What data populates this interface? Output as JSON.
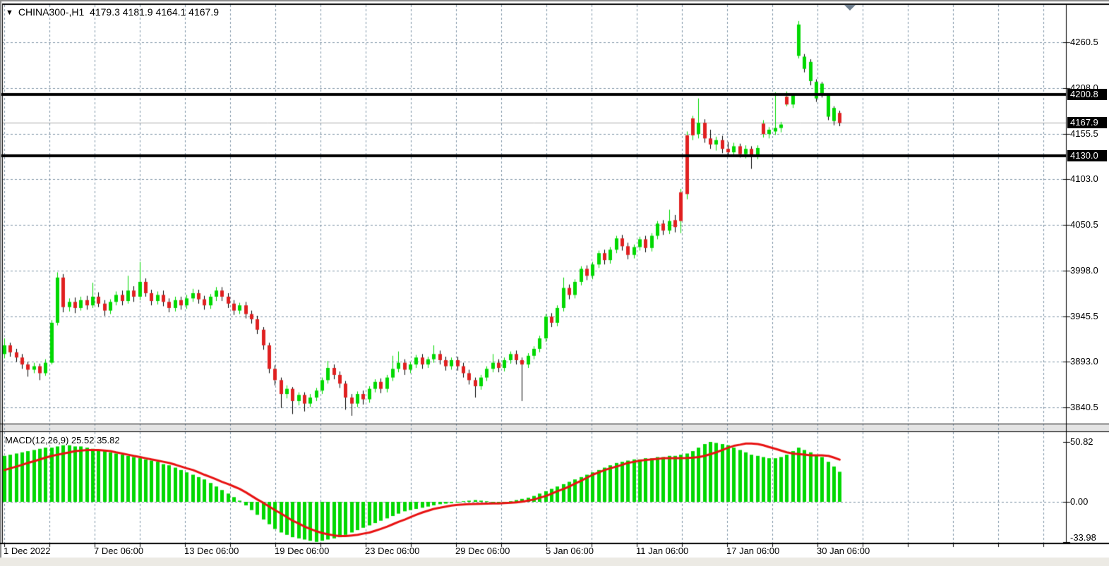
{
  "window": {
    "title_symbol": "CHINA300-,H1",
    "title_ohlc": "4179.3 4181.9 4164.1 4167.9"
  },
  "colors": {
    "bull": "#00d800",
    "bear": "#e02020",
    "wick_down": "#000000",
    "grid": "#7e93a6",
    "signal_line": "#e81212",
    "hline": "#000000",
    "current_price_line": "#a8a8a8",
    "badge_bg": "#000000",
    "badge_fg": "#ffffff",
    "frame": "#000000",
    "outer_frame": "#8a8a8a",
    "separator_band": "#e4e4e4",
    "bottom_strip": "#eceae4"
  },
  "price_axis": {
    "tick_labels": [
      "4260.5",
      "4208.0",
      "4155.5",
      "4103.0",
      "4050.5",
      "3998.0",
      "3945.5",
      "3893.0",
      "3840.5"
    ],
    "badges": [
      {
        "text": "4200.8",
        "price": 4200.8,
        "kind": "hline-level"
      },
      {
        "text": "4167.9",
        "price": 4167.9,
        "kind": "current-price"
      },
      {
        "text": "4130.0",
        "price": 4130.0,
        "kind": "hline-level"
      }
    ]
  },
  "macd_pane": {
    "label": "MACD(12,26,9) 25.52 35.82",
    "axis_labels": [
      "50.82",
      "0.00",
      "-33.98"
    ],
    "axis_values": [
      50.82,
      0,
      -33.98
    ]
  },
  "chart_data": {
    "type": "candlestick",
    "title": "CHINA300-,H1",
    "symbol": "CHINA300-",
    "timeframe": "H1",
    "current_bar": {
      "open": 4179.3,
      "high": 4181.9,
      "low": 4164.1,
      "close": 4167.9
    },
    "ylim": [
      3822.0,
      4303.5
    ],
    "price_ticks": [
      4260.5,
      4208.0,
      4155.5,
      4103.0,
      4050.5,
      3998.0,
      3945.5,
      3893.0,
      3840.5
    ],
    "hlines": [
      4200.8,
      4130.0
    ],
    "current_price": 4167.9,
    "time_labels": [
      "1 Dec 2022",
      "7 Dec 06:00",
      "13 Dec 06:00",
      "19 Dec 06:00",
      "23 Dec 06:00",
      "29 Dec 06:00",
      "5 Jan 06:00",
      "11 Jan 06:00",
      "17 Jan 06:00",
      "30 Jan 06:00"
    ],
    "grid": {
      "vertical_spacing_bars": 8,
      "dashed": true
    },
    "candles": [
      [
        3902,
        3920,
        3897,
        3912
      ],
      [
        3912,
        3915,
        3899,
        3904
      ],
      [
        3904,
        3908,
        3893,
        3898
      ],
      [
        3898,
        3902,
        3885,
        3890
      ],
      [
        3890,
        3893,
        3876,
        3884
      ],
      [
        3884,
        3892,
        3880,
        3888
      ],
      [
        3888,
        3891,
        3872,
        3880
      ],
      [
        3880,
        3896,
        3877,
        3892
      ],
      [
        3892,
        3941,
        3890,
        3938
      ],
      [
        3938,
        3996,
        3935,
        3990
      ],
      [
        3990,
        3994,
        3950,
        3956
      ],
      [
        3956,
        3966,
        3951,
        3962
      ],
      [
        3962,
        3967,
        3949,
        3955
      ],
      [
        3955,
        3968,
        3952,
        3964
      ],
      [
        3964,
        3969,
        3953,
        3958
      ],
      [
        3958,
        3984,
        3955,
        3968
      ],
      [
        3968,
        3973,
        3956,
        3960
      ],
      [
        3960,
        3964,
        3946,
        3952
      ],
      [
        3952,
        3965,
        3948,
        3962
      ],
      [
        3962,
        3974,
        3958,
        3970
      ],
      [
        3970,
        3975,
        3958,
        3963
      ],
      [
        3963,
        3992,
        3960,
        3975
      ],
      [
        3975,
        3980,
        3962,
        3968
      ],
      [
        3968,
        4008,
        3964,
        3985
      ],
      [
        3985,
        3989,
        3968,
        3972
      ],
      [
        3972,
        3976,
        3958,
        3963
      ],
      [
        3963,
        3974,
        3959,
        3970
      ],
      [
        3970,
        3975,
        3957,
        3962
      ],
      [
        3962,
        3966,
        3950,
        3955
      ],
      [
        3955,
        3968,
        3951,
        3964
      ],
      [
        3964,
        3968,
        3953,
        3958
      ],
      [
        3958,
        3970,
        3954,
        3966
      ],
      [
        3966,
        3977,
        3962,
        3972
      ],
      [
        3972,
        3976,
        3960,
        3965
      ],
      [
        3965,
        3969,
        3953,
        3958
      ],
      [
        3958,
        3971,
        3954,
        3968
      ],
      [
        3968,
        3979,
        3963,
        3975
      ],
      [
        3975,
        3979,
        3963,
        3968
      ],
      [
        3968,
        3972,
        3955,
        3960
      ],
      [
        3960,
        3964,
        3947,
        3952
      ],
      [
        3952,
        3961,
        3948,
        3958
      ],
      [
        3958,
        3962,
        3943,
        3948
      ],
      [
        3948,
        3952,
        3937,
        3942
      ],
      [
        3942,
        3946,
        3925,
        3930
      ],
      [
        3930,
        3933,
        3907,
        3912
      ],
      [
        3912,
        3915,
        3880,
        3885
      ],
      [
        3885,
        3889,
        3866,
        3872
      ],
      [
        3872,
        3875,
        3840,
        3856
      ],
      [
        3856,
        3866,
        3851,
        3862
      ],
      [
        3862,
        3864,
        3833,
        3848
      ],
      [
        3848,
        3858,
        3843,
        3855
      ],
      [
        3855,
        3858,
        3836,
        3845
      ],
      [
        3845,
        3856,
        3841,
        3852
      ],
      [
        3852,
        3863,
        3848,
        3860
      ],
      [
        3860,
        3875,
        3856,
        3872
      ],
      [
        3872,
        3894,
        3868,
        3886
      ],
      [
        3886,
        3890,
        3873,
        3878
      ],
      [
        3878,
        3882,
        3863,
        3868
      ],
      [
        3868,
        3871,
        3838,
        3852
      ],
      [
        3852,
        3856,
        3831,
        3845
      ],
      [
        3845,
        3859,
        3841,
        3856
      ],
      [
        3856,
        3860,
        3844,
        3850
      ],
      [
        3850,
        3865,
        3846,
        3862
      ],
      [
        3862,
        3873,
        3858,
        3870
      ],
      [
        3870,
        3874,
        3857,
        3862
      ],
      [
        3862,
        3878,
        3858,
        3875
      ],
      [
        3875,
        3900,
        3871,
        3885
      ],
      [
        3885,
        3905,
        3881,
        3892
      ],
      [
        3892,
        3896,
        3878,
        3884
      ],
      [
        3884,
        3893,
        3880,
        3890
      ],
      [
        3890,
        3901,
        3886,
        3898
      ],
      [
        3898,
        3902,
        3885,
        3890
      ],
      [
        3890,
        3899,
        3886,
        3896
      ],
      [
        3896,
        3912,
        3892,
        3902
      ],
      [
        3902,
        3906,
        3890,
        3895
      ],
      [
        3895,
        3899,
        3883,
        3888
      ],
      [
        3888,
        3898,
        3884,
        3895
      ],
      [
        3895,
        3899,
        3883,
        3888
      ],
      [
        3888,
        3892,
        3875,
        3880
      ],
      [
        3880,
        3884,
        3867,
        3872
      ],
      [
        3872,
        3875,
        3852,
        3865
      ],
      [
        3865,
        3878,
        3861,
        3875
      ],
      [
        3875,
        3888,
        3871,
        3885
      ],
      [
        3885,
        3902,
        3881,
        3892
      ],
      [
        3892,
        3896,
        3881,
        3886
      ],
      [
        3886,
        3898,
        3882,
        3895
      ],
      [
        3895,
        3905,
        3891,
        3902
      ],
      [
        3902,
        3906,
        3890,
        3895
      ],
      [
        3895,
        3898,
        3848,
        3890
      ],
      [
        3890,
        3903,
        3886,
        3900
      ],
      [
        3900,
        3911,
        3896,
        3908
      ],
      [
        3908,
        3923,
        3904,
        3920
      ],
      [
        3920,
        3948,
        3916,
        3945
      ],
      [
        3945,
        3949,
        3933,
        3938
      ],
      [
        3938,
        3958,
        3934,
        3955
      ],
      [
        3955,
        3990,
        3951,
        3978
      ],
      [
        3978,
        3982,
        3965,
        3970
      ],
      [
        3970,
        3988,
        3966,
        3985
      ],
      [
        3985,
        4003,
        3981,
        4000
      ],
      [
        4000,
        4004,
        3987,
        3992
      ],
      [
        3992,
        4008,
        3988,
        4005
      ],
      [
        4005,
        4021,
        4001,
        4018
      ],
      [
        4018,
        4022,
        4005,
        4010
      ],
      [
        4010,
        4025,
        4006,
        4022
      ],
      [
        4022,
        4038,
        4018,
        4035
      ],
      [
        4035,
        4039,
        4021,
        4026
      ],
      [
        4026,
        4030,
        4011,
        4016
      ],
      [
        4016,
        4028,
        4012,
        4025
      ],
      [
        4025,
        4037,
        4021,
        4034
      ],
      [
        4034,
        4038,
        4019,
        4024
      ],
      [
        4024,
        4041,
        4020,
        4038
      ],
      [
        4038,
        4055,
        4034,
        4052
      ],
      [
        4052,
        4056,
        4039,
        4044
      ],
      [
        4044,
        4068,
        4040,
        4055
      ],
      [
        4056,
        4062,
        4042,
        4048
      ],
      [
        4088,
        4092,
        4041,
        4055
      ],
      [
        4153.5,
        4158,
        4080,
        4086
      ],
      [
        4173,
        4176,
        4148,
        4153.5
      ],
      [
        4155,
        4196,
        4150,
        4168
      ],
      [
        4168,
        4172,
        4145,
        4150
      ],
      [
        4150,
        4160,
        4138,
        4143
      ],
      [
        4143,
        4152,
        4136,
        4148
      ],
      [
        4148,
        4153,
        4133,
        4138
      ],
      [
        4138,
        4146,
        4130,
        4134
      ],
      [
        4134,
        4145,
        4130,
        4141
      ],
      [
        4141,
        4144,
        4128,
        4132
      ],
      [
        4132,
        4142,
        4127,
        4138
      ],
      [
        4138,
        4141,
        4115,
        4130
      ],
      [
        4130,
        4142,
        4126,
        4139
      ],
      [
        4167,
        4171,
        4151,
        4155
      ],
      [
        4155,
        4163,
        4150,
        4160
      ],
      [
        4158,
        4203,
        4154,
        4162
      ],
      [
        4162,
        4169,
        4157,
        4166
      ],
      [
        4198,
        4204,
        4187,
        4189
      ],
      [
        4189,
        4202,
        4185,
        4199
      ],
      [
        4245,
        4285,
        4242,
        4281
      ],
      [
        4230,
        4247,
        4226,
        4244
      ],
      [
        4216,
        4241,
        4211,
        4238
      ],
      [
        4196,
        4218,
        4192,
        4215
      ],
      [
        4201,
        4215,
        4197,
        4213
      ],
      [
        4175,
        4201,
        4171,
        4199
      ],
      [
        4170,
        4187,
        4165,
        4185
      ],
      [
        4179.3,
        4181.9,
        4164.1,
        4167.9
      ]
    ],
    "macd": {
      "params": "12,26,9",
      "current_macd": 25.52,
      "current_signal": 35.82,
      "ylim": [
        -34.7,
        59.2
      ],
      "ticks": [
        50.82,
        0,
        -33.98
      ],
      "histogram": [
        39,
        40,
        41,
        42,
        43,
        44,
        45,
        46,
        46,
        47,
        48,
        48,
        47,
        47,
        46,
        45,
        44,
        43,
        42,
        41,
        40,
        39,
        38,
        37,
        36,
        35,
        34,
        32,
        31,
        29,
        27,
        25,
        23,
        21,
        19,
        16,
        13,
        10,
        7,
        4,
        1,
        -3,
        -7,
        -11,
        -15,
        -19,
        -23,
        -26,
        -28,
        -30,
        -31,
        -32,
        -33,
        -33.98,
        -33,
        -32,
        -31,
        -30,
        -28,
        -26,
        -24,
        -22,
        -20,
        -18,
        -16,
        -14,
        -12,
        -10,
        -8,
        -7,
        -6,
        -5,
        -4,
        -3,
        -2,
        -1.5,
        -1,
        -0.5,
        0.5,
        1,
        1.5,
        1,
        0.5,
        -0.5,
        -1,
        -0.5,
        0.5,
        1.5,
        2.5,
        3.5,
        5,
        7,
        9,
        11,
        13,
        15,
        17,
        19,
        21,
        23,
        25,
        27,
        29,
        31,
        33,
        34,
        35,
        36,
        36,
        37,
        37,
        38,
        38,
        39,
        39,
        40,
        41,
        43,
        46,
        49,
        50.82,
        50,
        49,
        48,
        46,
        44,
        42,
        40,
        39,
        38,
        37,
        37,
        38,
        40,
        43,
        46,
        44,
        42,
        40,
        38,
        34,
        30,
        25.52
      ],
      "signal": [
        27,
        28.5,
        30,
        31.5,
        33,
        34.5,
        36,
        37.5,
        39,
        40,
        41,
        42,
        43,
        43.5,
        44,
        44,
        44,
        43.5,
        43,
        42,
        41,
        40,
        39,
        38,
        37,
        36,
        35,
        34,
        33,
        31.5,
        30,
        28.5,
        27,
        25,
        23,
        21,
        19,
        17,
        15,
        13,
        11,
        8,
        5,
        2,
        -1,
        -4,
        -7,
        -10,
        -13,
        -16,
        -18.5,
        -21,
        -23,
        -25,
        -26.5,
        -27.5,
        -28.5,
        -29,
        -29,
        -28.5,
        -28,
        -27,
        -26,
        -24.5,
        -23,
        -21,
        -19,
        -17,
        -15,
        -13,
        -11,
        -9,
        -7.5,
        -6,
        -5,
        -4,
        -3.2,
        -2.6,
        -2.2,
        -2,
        -1.8,
        -1.6,
        -1.5,
        -1.4,
        -1.3,
        -1.1,
        -0.8,
        -0.4,
        0.2,
        1,
        2,
        3.5,
        5,
        7,
        9,
        11,
        13,
        15.5,
        18,
        20.5,
        23,
        25,
        27,
        28.5,
        30,
        31.5,
        33,
        34,
        35,
        35.5,
        36,
        36.5,
        37,
        37,
        37,
        37,
        37.2,
        37.5,
        38,
        39,
        40.5,
        42,
        44,
        46,
        47.5,
        48.5,
        49.5,
        49.5,
        49,
        48,
        46.5,
        45,
        43.5,
        42,
        41,
        40.5,
        40,
        39.5,
        39.5,
        39.5,
        39,
        37.5,
        35.82
      ]
    }
  }
}
